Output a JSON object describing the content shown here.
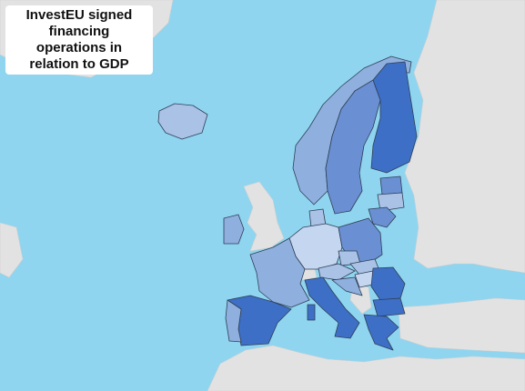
{
  "title_lines": [
    "InvestEU signed",
    "financing",
    "operations in",
    "relation to GDP"
  ]
}
